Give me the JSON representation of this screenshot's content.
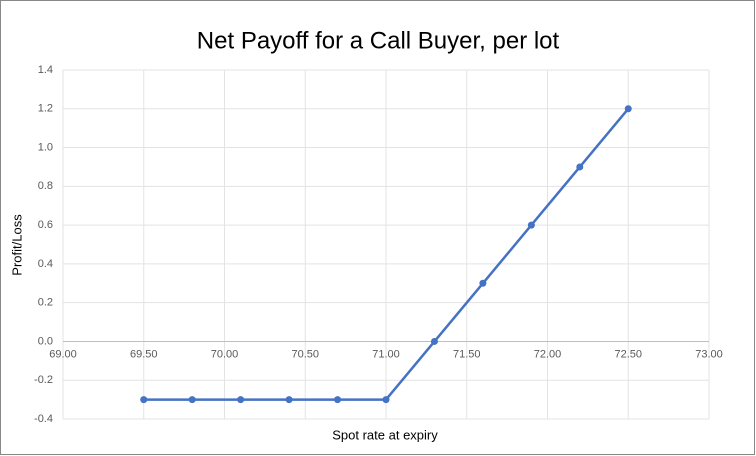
{
  "chart_data": {
    "type": "line",
    "title": "Net Payoff for a Call Buyer, per lot",
    "xlabel": "Spot rate at expiry",
    "ylabel": "Profit/Loss",
    "x": [
      69.5,
      69.8,
      70.1,
      70.4,
      70.7,
      71.0,
      71.3,
      71.6,
      71.9,
      72.2,
      72.5
    ],
    "series": [
      {
        "name": "Net Payoff",
        "color": "#4472c4",
        "values": [
          -0.3,
          -0.3,
          -0.3,
          -0.3,
          -0.3,
          -0.3,
          0,
          0.3,
          0.6,
          0.9,
          1.2
        ]
      }
    ],
    "xlim": [
      69,
      73
    ],
    "xticks": [
      {
        "value": 69,
        "label": "69.00"
      },
      {
        "value": 69.5,
        "label": "69.50"
      },
      {
        "value": 70,
        "label": "70.00"
      },
      {
        "value": 70.5,
        "label": "70.50"
      },
      {
        "value": 71,
        "label": "71.00"
      },
      {
        "value": 71.5,
        "label": "71.50"
      },
      {
        "value": 72,
        "label": "72.00"
      },
      {
        "value": 72.5,
        "label": "72.50"
      },
      {
        "value": 73,
        "label": "73.00"
      }
    ],
    "ylim": [
      -0.4,
      1.4
    ],
    "yticks": [
      -0.4,
      -0.2,
      {
        "value": 0,
        "label": "0.0"
      },
      0.2,
      0.4,
      0.6,
      0.8,
      {
        "value": 1,
        "label": "1.0"
      },
      1.2,
      1.4
    ],
    "grid": true
  }
}
